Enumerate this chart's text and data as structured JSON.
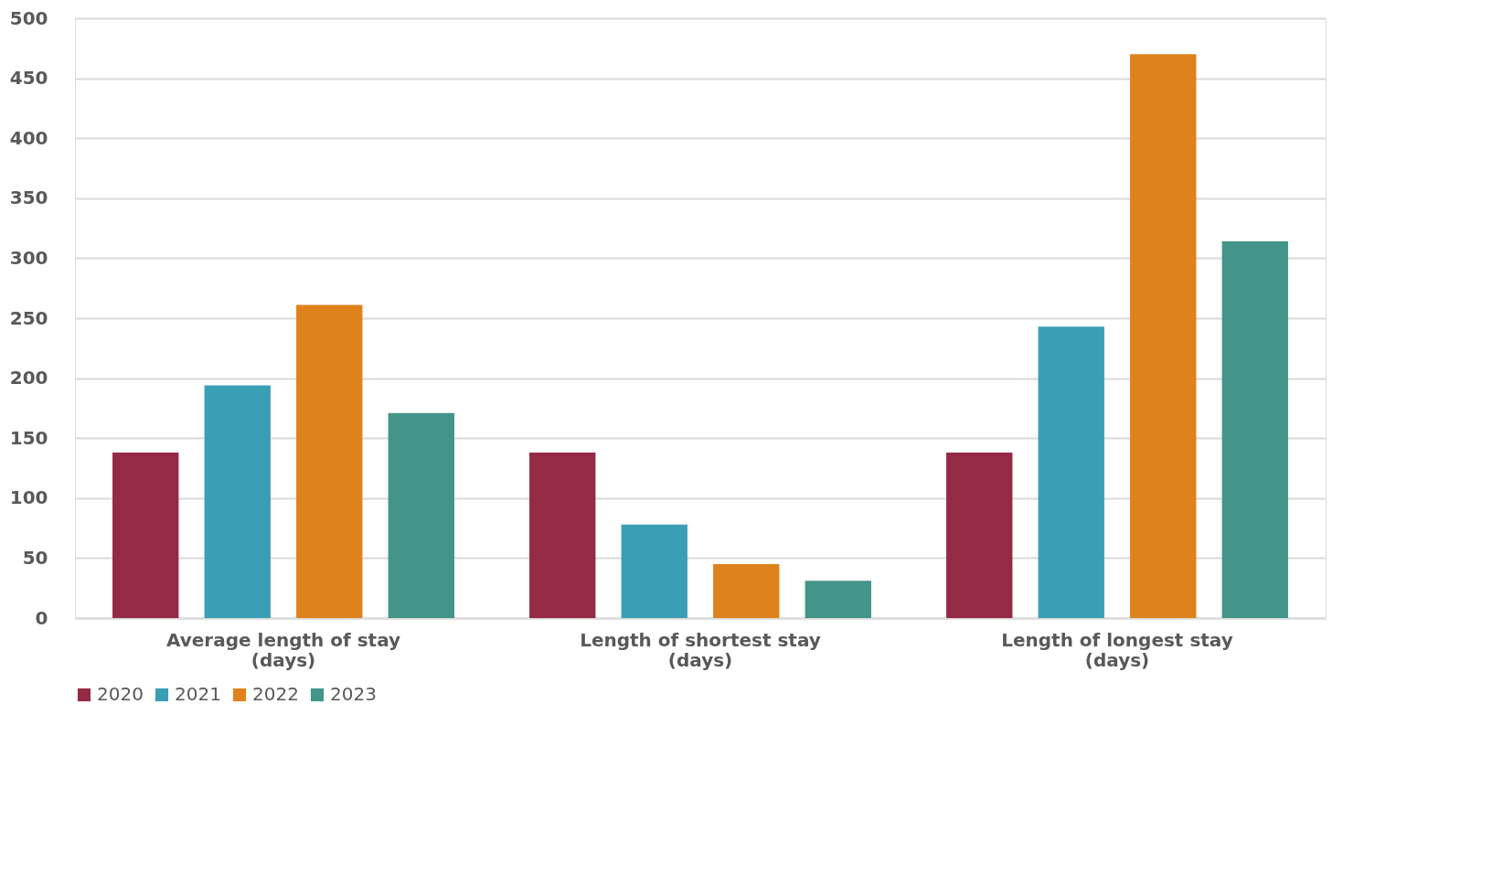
{
  "chart_data": {
    "type": "bar",
    "categories": [
      "Average length of stay (days)",
      "Length of shortest stay (days)",
      "Length of  longest stay (days)"
    ],
    "series": [
      {
        "name": "2020",
        "color": "#952a45",
        "values": [
          138,
          138,
          138
        ]
      },
      {
        "name": "2021",
        "color": "#3a9fb5",
        "values": [
          194,
          78,
          243
        ]
      },
      {
        "name": "2022",
        "color": "#df821c",
        "values": [
          261,
          45,
          470
        ]
      },
      {
        "name": "2023",
        "color": "#43958a",
        "values": [
          171,
          31,
          314
        ]
      }
    ],
    "ylim": [
      0,
      500
    ],
    "yticks": [
      0,
      50,
      100,
      150,
      200,
      250,
      300,
      350,
      400,
      450,
      500
    ],
    "grid": "y",
    "legend": "bottom"
  }
}
